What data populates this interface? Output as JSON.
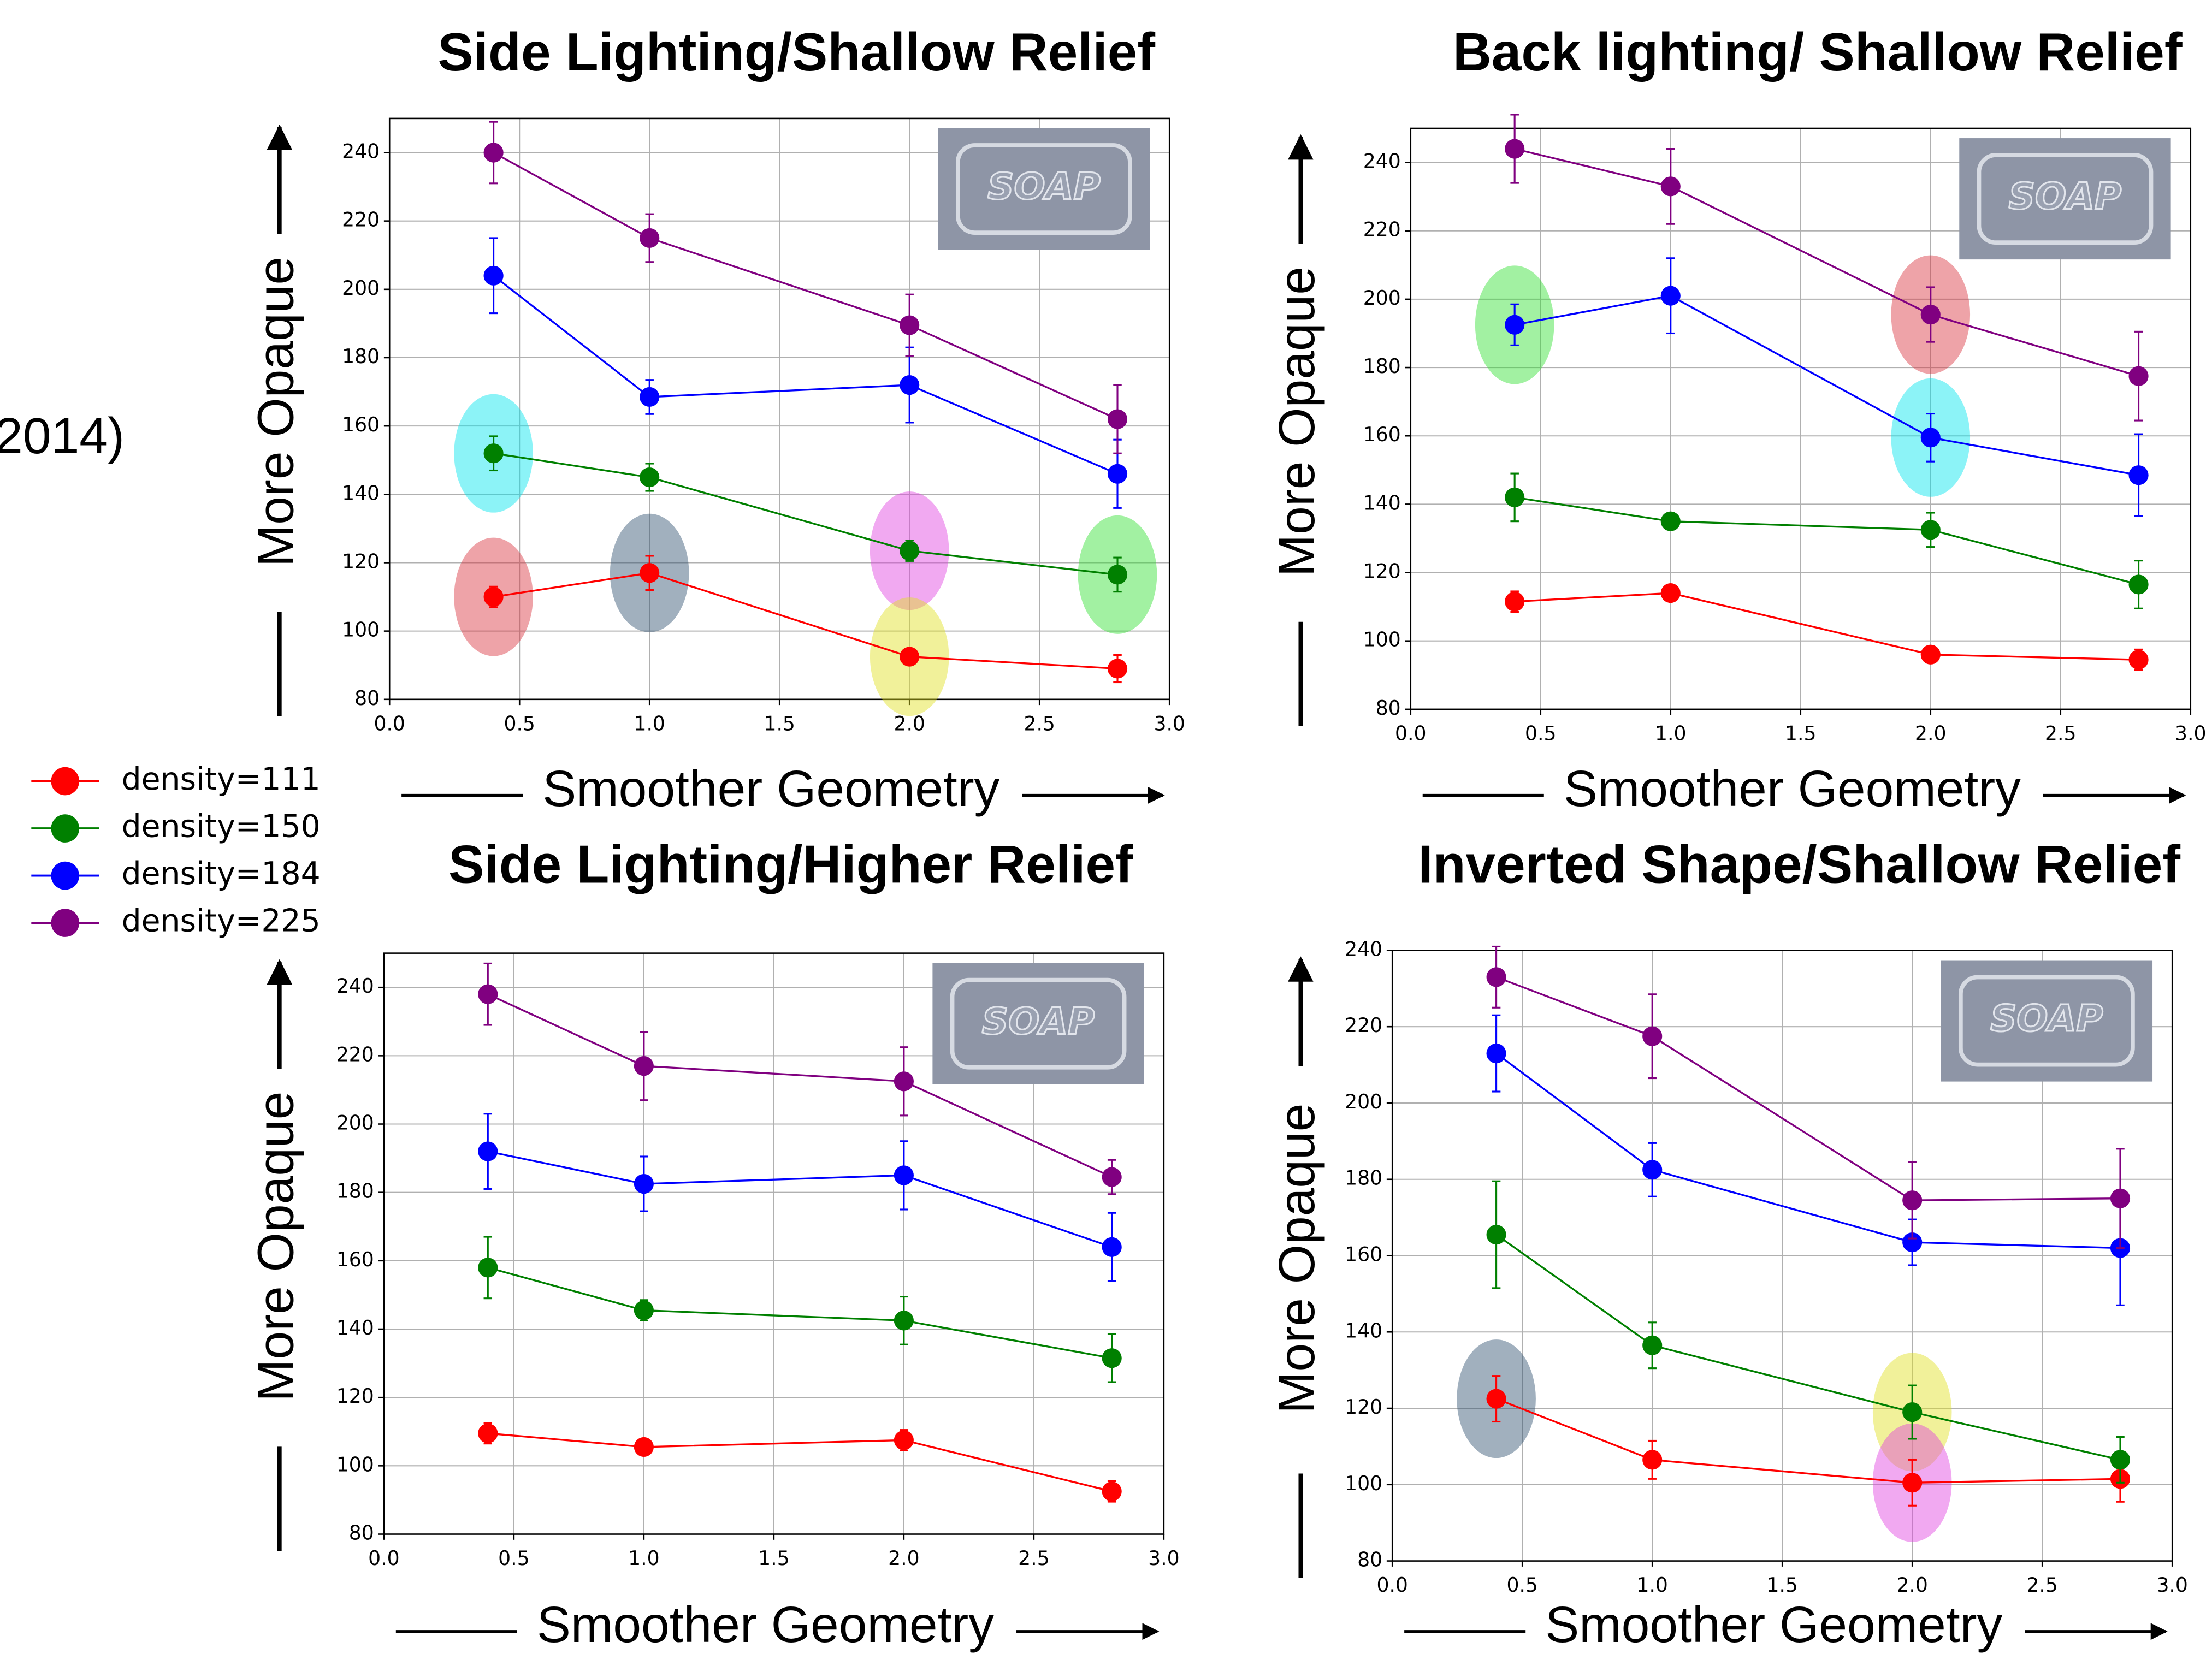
{
  "fragment": "2014)",
  "legend": [
    {
      "name": "density=111",
      "color": "#ff0000"
    },
    {
      "name": "density=150",
      "color": "#008000"
    },
    {
      "name": "density=184",
      "color": "#0000ff"
    },
    {
      "name": "density=225",
      "color": "#800080"
    }
  ],
  "chart_data": [
    {
      "type": "line",
      "title": "Side Lighting/Shallow Relief",
      "xlabel": "Smoother Geometry",
      "ylabel": "More Opaque",
      "inset": "SOAP",
      "x": [
        0.4,
        1.0,
        2.0,
        2.8
      ],
      "xlim": [
        0,
        3
      ],
      "ylim": [
        80,
        250
      ],
      "grid": true,
      "xticks": [
        {
          "value": 0,
          "label": "0.0"
        },
        {
          "value": 0.5,
          "label": "0.5"
        },
        {
          "value": 1,
          "label": "1.0"
        },
        {
          "value": 1.5,
          "label": "1.5"
        },
        {
          "value": 2,
          "label": "2.0"
        },
        {
          "value": 2.5,
          "label": "2.5"
        },
        {
          "value": 3,
          "label": "3.0"
        }
      ],
      "yticks": [
        80,
        100,
        120,
        140,
        160,
        180,
        200,
        220,
        240
      ],
      "series": [
        {
          "values": [
            110,
            117,
            92.5,
            89
          ],
          "errors": [
            3,
            5,
            2,
            4
          ]
        },
        {
          "values": [
            152,
            145,
            123.5,
            116.5
          ],
          "errors": [
            5,
            4,
            3,
            5
          ]
        },
        {
          "values": [
            204,
            168.5,
            172,
            146
          ],
          "errors": [
            11,
            5,
            11,
            10
          ]
        },
        {
          "values": [
            240,
            215,
            189.5,
            162
          ],
          "errors": [
            9,
            7,
            9,
            10
          ]
        }
      ],
      "highlights": [
        {
          "series": 1,
          "index": 0,
          "color": "#00e5ee"
        },
        {
          "series": 0,
          "index": 0,
          "color": "#d9323f"
        },
        {
          "series": 0,
          "index": 1,
          "color": "#2f4f6f"
        },
        {
          "series": 1,
          "index": 2,
          "color": "#e040e0"
        },
        {
          "series": 0,
          "index": 2,
          "color": "#e0e020"
        },
        {
          "series": 1,
          "index": 3,
          "color": "#30e030"
        }
      ]
    },
    {
      "type": "line",
      "title": "Back lighting/ Shallow Relief",
      "xlabel": "Smoother Geometry",
      "ylabel": "More Opaque",
      "inset": "SOAP",
      "x": [
        0.4,
        1.0,
        2.0,
        2.8
      ],
      "xlim": [
        0,
        3
      ],
      "ylim": [
        80,
        250
      ],
      "grid": true,
      "xticks": [
        {
          "value": 0,
          "label": "0.0"
        },
        {
          "value": 0.5,
          "label": "0.5"
        },
        {
          "value": 1,
          "label": "1.0"
        },
        {
          "value": 1.5,
          "label": "1.5"
        },
        {
          "value": 2,
          "label": "2.0"
        },
        {
          "value": 2.5,
          "label": "2.5"
        },
        {
          "value": 3,
          "label": "3.0"
        }
      ],
      "yticks": [
        80,
        100,
        120,
        140,
        160,
        180,
        200,
        220,
        240
      ],
      "series": [
        {
          "values": [
            111.5,
            114,
            96,
            94.5
          ],
          "errors": [
            3,
            2,
            2,
            3
          ]
        },
        {
          "values": [
            142,
            135,
            132.5,
            116.5
          ],
          "errors": [
            7,
            2,
            5,
            7
          ]
        },
        {
          "values": [
            192.5,
            201,
            159.5,
            148.5
          ],
          "errors": [
            6,
            11,
            7,
            12
          ]
        },
        {
          "values": [
            244,
            233,
            195.5,
            177.5
          ],
          "errors": [
            10,
            11,
            8,
            13
          ]
        }
      ],
      "highlights": [
        {
          "series": 2,
          "index": 0,
          "color": "#30e030"
        },
        {
          "series": 3,
          "index": 2,
          "color": "#d9323f"
        },
        {
          "series": 2,
          "index": 2,
          "color": "#00e5ee"
        }
      ]
    },
    {
      "type": "line",
      "title": "Side Lighting/Higher Relief",
      "xlabel": "Smoother Geometry",
      "ylabel": "More Opaque",
      "inset": "SOAP",
      "x": [
        0.4,
        1.0,
        2.0,
        2.8
      ],
      "xlim": [
        0,
        3
      ],
      "ylim": [
        80,
        250
      ],
      "grid": true,
      "xticks": [
        {
          "value": 0,
          "label": "0.0"
        },
        {
          "value": 0.5,
          "label": "0.5"
        },
        {
          "value": 1,
          "label": "1.0"
        },
        {
          "value": 1.5,
          "label": "1.5"
        },
        {
          "value": 2,
          "label": "2.0"
        },
        {
          "value": 2.5,
          "label": "2.5"
        },
        {
          "value": 3,
          "label": "3.0"
        }
      ],
      "yticks": [
        80,
        100,
        120,
        140,
        160,
        180,
        200,
        220,
        240
      ],
      "series": [
        {
          "values": [
            109.5,
            105.5,
            107.5,
            92.5
          ],
          "errors": [
            3,
            2,
            3,
            3
          ]
        },
        {
          "values": [
            158,
            145.5,
            142.5,
            131.5
          ],
          "errors": [
            9,
            3,
            7,
            7
          ]
        },
        {
          "values": [
            192,
            182.5,
            185,
            164
          ],
          "errors": [
            11,
            8,
            10,
            10
          ]
        },
        {
          "values": [
            238,
            217,
            212.5,
            184.5
          ],
          "errors": [
            9,
            10,
            10,
            5
          ]
        }
      ],
      "highlights": []
    },
    {
      "type": "line",
      "title": "Inverted Shape/Shallow Relief",
      "xlabel": "Smoother Geometry",
      "ylabel": "More Opaque",
      "inset": "SOAP",
      "x": [
        0.4,
        1.0,
        2.0,
        2.8
      ],
      "xlim": [
        0,
        3
      ],
      "ylim": [
        80,
        240
      ],
      "grid": true,
      "xticks": [
        {
          "value": 0,
          "label": "0.0"
        },
        {
          "value": 0.5,
          "label": "0.5"
        },
        {
          "value": 1,
          "label": "1.0"
        },
        {
          "value": 1.5,
          "label": "1.5"
        },
        {
          "value": 2,
          "label": "2.0"
        },
        {
          "value": 2.5,
          "label": "2.5"
        },
        {
          "value": 3,
          "label": "3.0"
        }
      ],
      "yticks": [
        80,
        100,
        120,
        140,
        160,
        180,
        200,
        220,
        240
      ],
      "series": [
        {
          "values": [
            122.5,
            106.5,
            100.5,
            101.5
          ],
          "errors": [
            6,
            5,
            6,
            6
          ]
        },
        {
          "values": [
            165.5,
            136.5,
            119,
            106.5
          ],
          "errors": [
            14,
            6,
            7,
            6
          ]
        },
        {
          "values": [
            213,
            182.5,
            163.5,
            162
          ],
          "errors": [
            10,
            7,
            6,
            15
          ]
        },
        {
          "values": [
            233,
            217.5,
            174.5,
            175
          ],
          "errors": [
            8,
            11,
            10,
            13
          ]
        }
      ],
      "highlights": [
        {
          "series": 0,
          "index": 0,
          "color": "#2f4f6f"
        },
        {
          "series": 1,
          "index": 2,
          "color": "#e0e020"
        },
        {
          "series": 0,
          "index": 2,
          "color": "#e040e0"
        }
      ]
    }
  ]
}
